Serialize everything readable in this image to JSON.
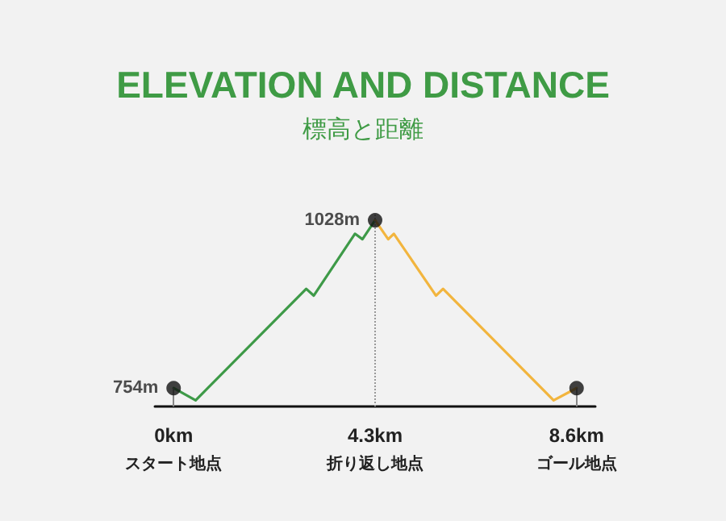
{
  "chart_data": {
    "type": "line",
    "title": "ELEVATION AND DISTANCE",
    "subtitle": "標高と距離",
    "xlim": [
      -0.4,
      9.0
    ],
    "ylim": [
      724,
      1040
    ],
    "xticks": [
      {
        "value": 0,
        "label": "0km"
      },
      {
        "value": 4.3,
        "label": "4.3km"
      },
      {
        "value": 8.6,
        "label": "8.6km"
      }
    ],
    "tick_labels": "x",
    "grid": false,
    "marker": "none",
    "annotations": [
      "スタート地点",
      "折り返し地点",
      "ゴール地点"
    ],
    "ref_lines": [
      {
        "axis": "x",
        "value": 4.3,
        "label": null,
        "color": "#999999",
        "line_style": "dotted"
      }
    ],
    "series": [
      {
        "color": "#3e9a48",
        "x": [
          0,
          0.47,
          2.83,
          2.99,
          3.87,
          4.03,
          4.3
        ],
        "values": [
          754,
          734,
          916,
          905,
          1006,
          997,
          1028
        ]
      },
      {
        "color": "#f2b53e",
        "x": [
          4.3,
          4.58,
          4.7,
          5.6,
          5.75,
          8.11,
          8.6
        ],
        "values": [
          1028,
          997,
          1006,
          905,
          916,
          734,
          754
        ]
      },
      {
        "type": "scatter",
        "color": "#111111",
        "marker": "circle",
        "x": [
          0,
          4.3,
          8.6
        ],
        "values": [
          754,
          1028,
          754
        ],
        "value_labels": [
          "754m",
          "1028m",
          null
        ]
      }
    ]
  }
}
